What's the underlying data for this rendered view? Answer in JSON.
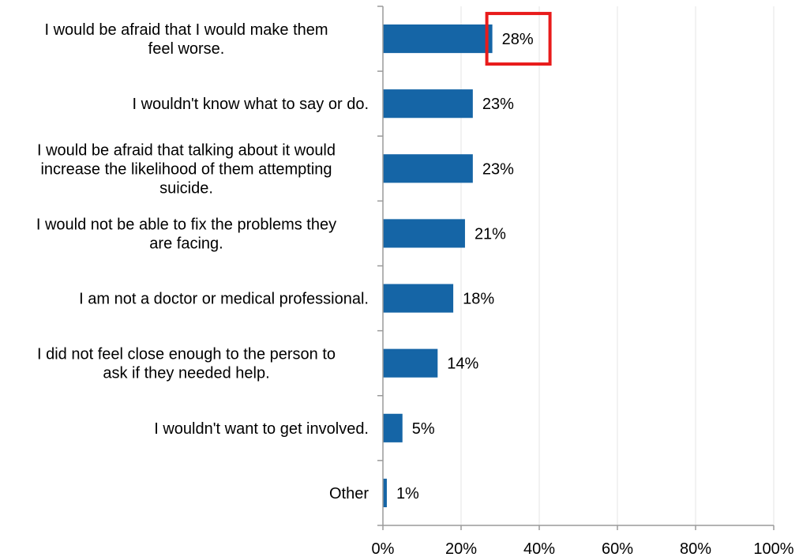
{
  "chart_data": {
    "type": "bar",
    "orientation": "horizontal",
    "title": "",
    "xlabel": "",
    "ylabel": "",
    "categories": [
      [
        "I would be afraid that I would make them",
        "feel worse."
      ],
      [
        "I wouldn't know what to say or do."
      ],
      [
        "I would be afraid that talking about it would",
        "increase the likelihood of them attempting",
        "suicide."
      ],
      [
        "I would not be able to fix the problems they",
        "are facing."
      ],
      [
        "I am not a doctor or medical professional."
      ],
      [
        "I did not feel close enough to the person to",
        "ask if they needed help."
      ],
      [
        "I wouldn't want to get involved."
      ],
      [
        "Other"
      ]
    ],
    "values": [
      28,
      23,
      23,
      21,
      18,
      14,
      5,
      1
    ],
    "value_labels": [
      "28%",
      "23%",
      "23%",
      "21%",
      "18%",
      "14%",
      "5%",
      "1%"
    ],
    "xlim": [
      0,
      100
    ],
    "xticks": [
      0,
      20,
      40,
      60,
      80,
      100
    ],
    "xtick_labels": [
      "0%",
      "20%",
      "40%",
      "60%",
      "80%",
      "100%"
    ],
    "grid": "vertical",
    "bar_color": "#1565A6",
    "highlight": {
      "index": 0,
      "color": "#E81B1B",
      "style": "box around value label"
    }
  }
}
